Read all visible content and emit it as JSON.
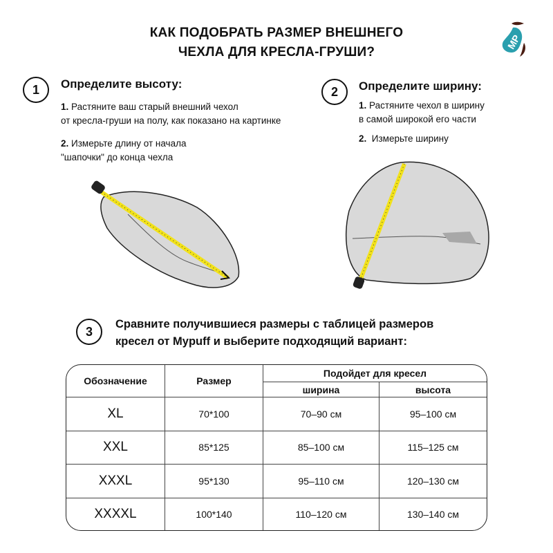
{
  "title": {
    "line1": "КАК ПОДОБРАТЬ РАЗМЕР ВНЕШНЕГО",
    "line2": "ЧЕХЛА ДЛЯ КРЕСЛА-ГРУШИ?"
  },
  "logo": {
    "text": "MP",
    "colors": {
      "teal": "#2a9fae",
      "brown": "#4a1d12"
    }
  },
  "step1": {
    "number": "1",
    "heading": "Определите высоту:",
    "item1_num": "1.",
    "item1_line1": "Растяните ваш старый внешний чехол",
    "item1_line2": "от кресла-груши на полу, как показано на картинке",
    "item2_num": "2.",
    "item2_line1": "Измерьте длину от начала",
    "item2_line2": "\"шапочки\" до конца чехла"
  },
  "step2": {
    "number": "2",
    "heading": "Определите ширину:",
    "item1_num": "1.",
    "item1_line1": "Растяните чехол в ширину",
    "item1_line2": "в самой широкой его части",
    "item2_num": "2.",
    "item2_line1": "Измерьте ширину"
  },
  "step3": {
    "number": "3",
    "line1": "Сравните получившиеся размеры с таблицей размеров",
    "line2": "кресел от Mypuff и выберите подходящий вариант:"
  },
  "colors": {
    "tape": "#f2e21a",
    "bag": "#d9d9d9"
  },
  "table": {
    "headers": {
      "designation": "Обозначение",
      "size": "Размер",
      "fits": "Подойдет для кресел",
      "width": "ширина",
      "height": "высота"
    },
    "rows": [
      {
        "designation": "XL",
        "size": "70*100",
        "width": "70–90 см",
        "height": "95–100 см"
      },
      {
        "designation": "XXL",
        "size": "85*125",
        "width": "85–100 см",
        "height": "115–125 см"
      },
      {
        "designation": "XXXL",
        "size": "95*130",
        "width": "95–110 см",
        "height": "120–130 см"
      },
      {
        "designation": "XXXXL",
        "size": "100*140",
        "width": "110–120 см",
        "height": "130–140 см"
      }
    ]
  }
}
